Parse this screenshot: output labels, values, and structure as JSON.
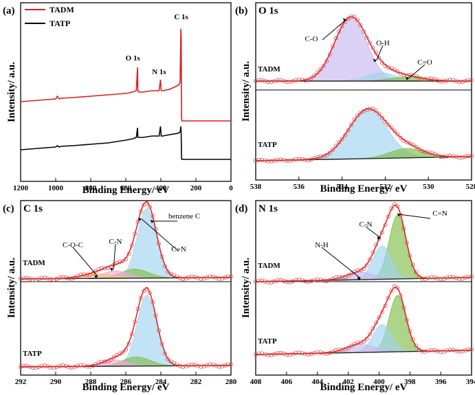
{
  "colors": {
    "tadm": "#e01b1b",
    "tatp": "#000000",
    "fit": "#e01b1b",
    "marker": "#e05050",
    "background": "#222222",
    "peak_purple": "#c8b8ee",
    "peak_blue": "#9fd4ef",
    "peak_green": "#7fbf4a",
    "peak_pink": "#f2a8d8",
    "peak_orange": "#f5c07a"
  },
  "chart_data": [
    {
      "id": "a",
      "type": "line",
      "panel_label": "(a)",
      "xlabel": "Binding Energy/ eV",
      "ylabel": "Intensity/ a.u.",
      "x_reversed": true,
      "xlim": [
        1200,
        0
      ],
      "ylim": [
        0,
        100
      ],
      "xticks": [
        1200,
        1000,
        800,
        600,
        400,
        200,
        0
      ],
      "legend": {
        "placement": "top-left",
        "entries": [
          "TADM",
          "TATP"
        ]
      },
      "series": [
        {
          "name": "TADM",
          "color_key": "tadm",
          "x": [
            1200,
            1100,
            1000,
            990,
            980,
            970,
            900,
            800,
            700,
            600,
            560,
            540,
            533,
            531,
            525,
            500,
            450,
            410,
            402,
            398,
            390,
            350,
            300,
            290,
            286,
            284,
            282,
            280,
            270,
            250,
            200,
            100,
            0
          ],
          "y": [
            44,
            45,
            46,
            48,
            46,
            46.5,
            47,
            48,
            49,
            50,
            51,
            52,
            69,
            52,
            51,
            51,
            52,
            52,
            60,
            52,
            52,
            53,
            56,
            58,
            97,
            89,
            33,
            30,
            30,
            30,
            30,
            30,
            30
          ]
        },
        {
          "name": "TATP",
          "color_key": "tatp",
          "x": [
            1200,
            1100,
            1000,
            990,
            980,
            970,
            900,
            800,
            700,
            600,
            560,
            540,
            533,
            531,
            525,
            500,
            450,
            410,
            402,
            398,
            390,
            350,
            300,
            290,
            286,
            284,
            282,
            280,
            270,
            250,
            200,
            100,
            0
          ],
          "y": [
            9,
            10,
            11,
            12,
            11,
            11.5,
            12,
            13,
            14,
            16,
            17,
            18,
            25,
            18,
            18,
            18,
            19,
            19,
            26,
            19,
            19,
            20,
            21,
            22,
            26,
            20,
            3,
            2,
            2,
            2,
            2,
            2,
            2
          ]
        }
      ],
      "annotations": [
        {
          "text": "C 1s",
          "x": 284,
          "y": 104
        },
        {
          "text": "O 1s",
          "x": 560,
          "y": 74
        },
        {
          "text": "N 1s",
          "x": 410,
          "y": 64
        }
      ]
    },
    {
      "id": "b",
      "type": "line",
      "panel_label": "(b)",
      "title": "O 1s",
      "xlabel": "Binding Energy/ eV",
      "ylabel": "Intensity/ a.u.",
      "x_reversed": true,
      "xlim": [
        538,
        528
      ],
      "xticks": [
        538,
        536,
        534,
        532,
        530,
        528
      ],
      "spectra": [
        {
          "sample": "TADM",
          "baseline": 0.0,
          "height": 1.0,
          "peaks": [
            {
              "label": "C-O",
              "center": 533.6,
              "amplitude": 0.92,
              "width": 0.75,
              "color_key": "peak_purple"
            },
            {
              "label": "O-H",
              "center": 532.2,
              "amplitude": 0.12,
              "width": 0.7,
              "color_key": "peak_blue"
            },
            {
              "label": "C=O",
              "center": 531.0,
              "amplitude": 0.06,
              "width": 0.8,
              "color_key": "peak_green"
            }
          ]
        },
        {
          "sample": "TATP",
          "baseline": 0.0,
          "height": 1.0,
          "peaks": [
            {
              "label": "",
              "center": 532.8,
              "amplitude": 0.84,
              "width": 0.9,
              "color_key": "peak_blue"
            },
            {
              "label": "",
              "center": 531.0,
              "amplitude": 0.16,
              "width": 0.8,
              "color_key": "peak_green"
            }
          ]
        }
      ]
    },
    {
      "id": "c",
      "type": "line",
      "panel_label": "(c)",
      "title": "C 1s",
      "xlabel": "Binding Energy/ eV",
      "ylabel": "Intensity/ a.u.",
      "x_reversed": true,
      "xlim": [
        292,
        280
      ],
      "xticks": [
        292,
        290,
        288,
        286,
        284,
        282,
        280
      ],
      "spectra": [
        {
          "sample": "TADM",
          "peaks": [
            {
              "label": "benzene C",
              "center": 284.8,
              "amplitude": 0.92,
              "width": 0.55,
              "color_key": "peak_blue"
            },
            {
              "label": "C=N",
              "center": 285.5,
              "amplitude": 0.12,
              "width": 0.8,
              "color_key": "peak_green"
            },
            {
              "label": "C-N",
              "center": 286.6,
              "amplitude": 0.1,
              "width": 0.7,
              "color_key": "peak_pink"
            },
            {
              "label": "C-O-C",
              "center": 287.6,
              "amplitude": 0.06,
              "width": 0.9,
              "color_key": "peak_orange"
            }
          ]
        },
        {
          "sample": "TATP",
          "peaks": [
            {
              "label": "",
              "center": 284.8,
              "amplitude": 0.94,
              "width": 0.55,
              "color_key": "peak_blue"
            },
            {
              "label": "",
              "center": 285.4,
              "amplitude": 0.12,
              "width": 0.8,
              "color_key": "peak_green"
            },
            {
              "label": "",
              "center": 286.6,
              "amplitude": 0.08,
              "width": 0.7,
              "color_key": "peak_pink"
            }
          ]
        }
      ]
    },
    {
      "id": "d",
      "type": "line",
      "panel_label": "(d)",
      "title": "N 1s",
      "xlabel": "Binding Energy/ eV",
      "ylabel": "Intensity/ a.u.",
      "x_reversed": true,
      "xlim": [
        408,
        394
      ],
      "xticks": [
        408,
        406,
        404,
        402,
        400,
        398,
        396,
        394
      ],
      "spectra": [
        {
          "sample": "TADM",
          "peaks": [
            {
              "label": "C=N",
              "center": 398.8,
              "amplitude": 0.86,
              "width": 0.55,
              "color_key": "peak_green"
            },
            {
              "label": "C-N",
              "center": 399.8,
              "amplitude": 0.45,
              "width": 0.6,
              "color_key": "peak_blue"
            },
            {
              "label": "N-H",
              "center": 401.2,
              "amplitude": 0.1,
              "width": 0.9,
              "color_key": "peak_purple"
            }
          ]
        },
        {
          "sample": "TATP",
          "peaks": [
            {
              "label": "",
              "center": 398.8,
              "amplitude": 0.82,
              "width": 0.55,
              "color_key": "peak_green"
            },
            {
              "label": "",
              "center": 399.8,
              "amplitude": 0.4,
              "width": 0.6,
              "color_key": "peak_blue"
            },
            {
              "label": "",
              "center": 401.2,
              "amplitude": 0.12,
              "width": 0.9,
              "color_key": "peak_purple"
            }
          ]
        }
      ]
    }
  ]
}
